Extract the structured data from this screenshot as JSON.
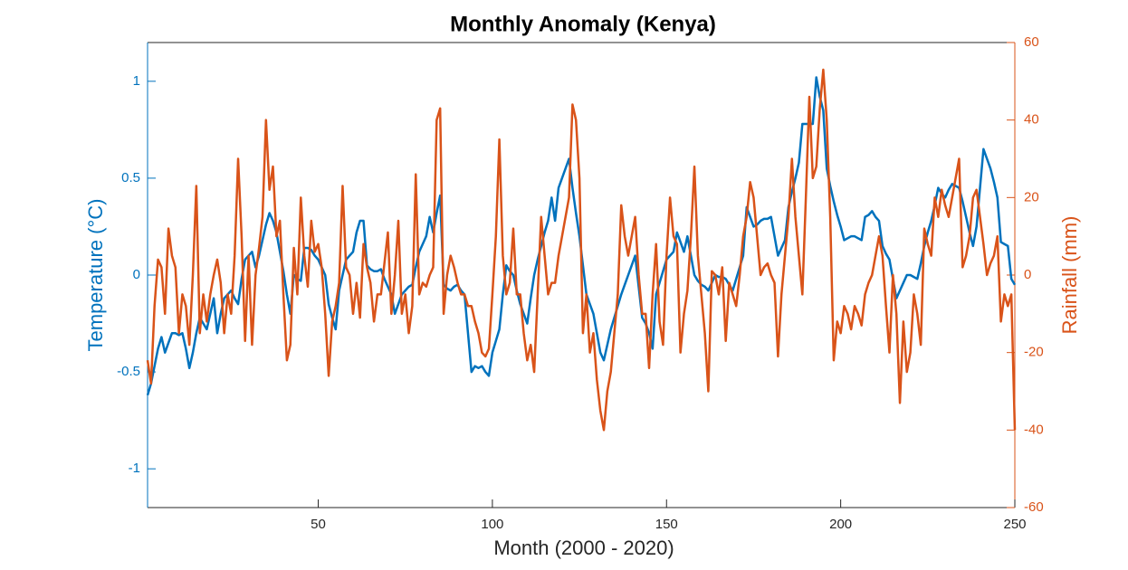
{
  "chart_data": {
    "type": "line",
    "title": "Monthly Anomaly (Kenya)",
    "xlabel": "Month (2000 - 2020)",
    "ylabel": "Temperature (°C)",
    "y2label": "Rainfall (mm)",
    "xlim": [
      1,
      250
    ],
    "xticks": [
      50,
      100,
      150,
      200,
      250
    ],
    "ylim": [
      -1.2,
      1.2
    ],
    "yticks": [
      -1,
      -0.5,
      0,
      0.5,
      1
    ],
    "y2lim": [
      -60,
      60
    ],
    "y2ticks": [
      -60,
      -40,
      -20,
      0,
      20,
      40,
      60
    ],
    "x": [
      1,
      2,
      3,
      4,
      5,
      6,
      7,
      8,
      9,
      10,
      11,
      12,
      13,
      14,
      15,
      16,
      17,
      18,
      19,
      20,
      21,
      22,
      23,
      24,
      25,
      26,
      27,
      28,
      29,
      30,
      31,
      32,
      33,
      34,
      35,
      36,
      37,
      38,
      39,
      40,
      41,
      42,
      43,
      44,
      45,
      46,
      47,
      48,
      49,
      50,
      51,
      52,
      53,
      54,
      55,
      56,
      57,
      58,
      59,
      60,
      61,
      62,
      63,
      64,
      65,
      66,
      67,
      68,
      69,
      70,
      71,
      72,
      73,
      74,
      75,
      76,
      77,
      78,
      79,
      80,
      81,
      82,
      83,
      84,
      85,
      86,
      87,
      88,
      89,
      90,
      91,
      92,
      93,
      94,
      95,
      96,
      97,
      98,
      99,
      100,
      101,
      102,
      103,
      104,
      105,
      106,
      107,
      108,
      109,
      110,
      111,
      112,
      113,
      114,
      115,
      116,
      117,
      118,
      119,
      120,
      121,
      122,
      123,
      124,
      125,
      126,
      127,
      128,
      129,
      130,
      131,
      132,
      133,
      134,
      135,
      136,
      137,
      138,
      139,
      140,
      141,
      142,
      143,
      144,
      145,
      146,
      147,
      148,
      149,
      150,
      151,
      152,
      153,
      154,
      155,
      156,
      157,
      158,
      159,
      160,
      161,
      162,
      163,
      164,
      165,
      166,
      167,
      168,
      169,
      170,
      171,
      172,
      173,
      174,
      175,
      176,
      177,
      178,
      179,
      180,
      181,
      182,
      183,
      184,
      185,
      186,
      187,
      188,
      189,
      190,
      191,
      192,
      193,
      194,
      195,
      196,
      197,
      198,
      199,
      200,
      201,
      202,
      203,
      204,
      205,
      206,
      207,
      208,
      209,
      210,
      211,
      212,
      213,
      214,
      215,
      216,
      217,
      218,
      219,
      220,
      221,
      222,
      223,
      224,
      225,
      226,
      227,
      228,
      229,
      230,
      231,
      232,
      233,
      234,
      235,
      236,
      237,
      238,
      239,
      240,
      241,
      242,
      243,
      244,
      245,
      246,
      247,
      248,
      249,
      250
    ],
    "series": [
      {
        "name": "Temperature",
        "color": "#0072bd",
        "axis": "y",
        "values": [
          -0.62,
          -0.56,
          -0.47,
          -0.38,
          -0.32,
          -0.4,
          -0.35,
          -0.3,
          -0.3,
          -0.31,
          -0.3,
          -0.38,
          -0.48,
          -0.4,
          -0.3,
          -0.22,
          -0.25,
          -0.28,
          -0.2,
          -0.12,
          -0.3,
          -0.2,
          -0.12,
          -0.1,
          -0.08,
          -0.12,
          -0.15,
          -0.02,
          0.08,
          0.1,
          0.12,
          0.04,
          0.1,
          0.18,
          0.26,
          0.32,
          0.28,
          0.22,
          0.12,
          0.02,
          -0.1,
          -0.2,
          0,
          -0.02,
          -0.03,
          0.14,
          0.14,
          0.13,
          0.1,
          0.08,
          0.04,
          0,
          -0.15,
          -0.22,
          -0.28,
          -0.08,
          0,
          0.08,
          0.1,
          0.12,
          0.22,
          0.28,
          0.28,
          0.05,
          0.03,
          0.02,
          0.02,
          0.03,
          -0.02,
          -0.06,
          -0.1,
          -0.2,
          -0.15,
          -0.1,
          -0.08,
          -0.06,
          -0.05,
          0.04,
          0.12,
          0.16,
          0.2,
          0.3,
          0.22,
          0.32,
          0.41,
          -0.05,
          -0.07,
          -0.08,
          -0.06,
          -0.05,
          -0.08,
          -0.1,
          -0.3,
          -0.5,
          -0.47,
          -0.48,
          -0.47,
          -0.5,
          -0.52,
          -0.4,
          -0.34,
          -0.28,
          -0.1,
          0.05,
          0.02,
          0,
          -0.08,
          -0.15,
          -0.2,
          -0.25,
          -0.12,
          0,
          0.08,
          0.15,
          0.22,
          0.28,
          0.4,
          0.28,
          0.45,
          0.5,
          0.55,
          0.6,
          0.45,
          0.32,
          0.2,
          0.05,
          -0.1,
          -0.15,
          -0.2,
          -0.3,
          -0.4,
          -0.44,
          -0.36,
          -0.28,
          -0.22,
          -0.16,
          -0.1,
          -0.05,
          0,
          0.05,
          0.1,
          -0.06,
          -0.22,
          -0.25,
          -0.3,
          -0.38,
          -0.1,
          -0.04,
          0.02,
          0.08,
          0.1,
          0.12,
          0.22,
          0.17,
          0.12,
          0.2,
          0.1,
          0,
          -0.03,
          -0.05,
          -0.06,
          -0.08,
          -0.04,
          0,
          -0.01,
          -0.01,
          -0.02,
          -0.05,
          -0.08,
          -0.02,
          0.04,
          0.1,
          0.35,
          0.3,
          0.25,
          0.26,
          0.28,
          0.29,
          0.29,
          0.3,
          0.2,
          0.1,
          0.14,
          0.18,
          0.35,
          0.43,
          0.5,
          0.58,
          0.78,
          0.78,
          0.78,
          0.78,
          1.02,
          0.92,
          0.85,
          0.55,
          0.46,
          0.38,
          0.31,
          0.25,
          0.18,
          0.19,
          0.2,
          0.2,
          0.19,
          0.18,
          0.3,
          0.31,
          0.33,
          0.3,
          0.28,
          0.15,
          0.11,
          0.08,
          -0.02,
          -0.12,
          -0.08,
          -0.04,
          0,
          0,
          -0.01,
          -0.02,
          0.06,
          0.15,
          0.22,
          0.28,
          0.36,
          0.45,
          0.42,
          0.4,
          0.44,
          0.47,
          0.46,
          0.45,
          0.38,
          0.3,
          0.22,
          0.15,
          0.25,
          0.45,
          0.65,
          0.6,
          0.55,
          0.48,
          0.4,
          0.17,
          0.16,
          0.15,
          -0.02,
          -0.05
        ]
      },
      {
        "name": "Rainfall",
        "color": "#d95319",
        "axis": "y2",
        "values": [
          -22,
          -28,
          -8,
          4,
          2,
          -10,
          12,
          5,
          2,
          -15,
          -5,
          -8,
          -18,
          0,
          23,
          -15,
          -5,
          -12,
          -5,
          0,
          4,
          -2,
          -15,
          -5,
          -10,
          5,
          30,
          10,
          -17,
          5,
          -18,
          0,
          7,
          15,
          40,
          22,
          28,
          10,
          14,
          -5,
          -22,
          -18,
          7,
          -5,
          20,
          5,
          -3,
          14,
          6,
          8,
          2,
          -10,
          -26,
          -12,
          -8,
          -2,
          23,
          2,
          0,
          -10,
          -2,
          -11,
          8,
          2,
          -2,
          -12,
          -5,
          -5,
          3,
          11,
          -10,
          0,
          14,
          -10,
          -5,
          -15,
          -8,
          26,
          -5,
          -2,
          -3,
          0,
          2,
          40,
          43,
          -10,
          0,
          5,
          2,
          -2,
          -5,
          -5,
          -8,
          -8,
          -12,
          -15,
          -20,
          -21,
          -19,
          -5,
          10,
          35,
          5,
          -5,
          -2,
          12,
          -5,
          -5,
          -15,
          -22,
          -18,
          -25,
          -5,
          15,
          5,
          -5,
          -2,
          -2,
          5,
          10,
          15,
          20,
          44,
          40,
          25,
          -15,
          -5,
          -20,
          -15,
          -27,
          -35,
          -40,
          -30,
          -25,
          -15,
          -5,
          18,
          10,
          5,
          10,
          15,
          0,
          -10,
          -10,
          -24,
          -5,
          8,
          -12,
          -18,
          5,
          20,
          10,
          8,
          -20,
          -10,
          -4,
          10,
          28,
          5,
          -5,
          -15,
          -30,
          1,
          0,
          -5,
          2,
          -17,
          -2,
          -5,
          -8,
          0,
          10,
          15,
          24,
          20,
          10,
          0,
          2,
          3,
          0,
          -2,
          -21,
          -5,
          5,
          15,
          30,
          15,
          5,
          -5,
          20,
          46,
          25,
          28,
          43,
          53,
          40,
          15,
          -22,
          -12,
          -15,
          -8,
          -10,
          -14,
          -8,
          -10,
          -13,
          -5,
          -2,
          0,
          5,
          10,
          5,
          -8,
          -20,
          0,
          -10,
          -33,
          -12,
          -25,
          -20,
          -5,
          -10,
          -18,
          12,
          8,
          5,
          20,
          15,
          22,
          18,
          15,
          20,
          25,
          30,
          2,
          5,
          10,
          20,
          22,
          15,
          8,
          0,
          3,
          5,
          10,
          -12,
          -5,
          -8,
          -5,
          -40
        ]
      }
    ]
  }
}
